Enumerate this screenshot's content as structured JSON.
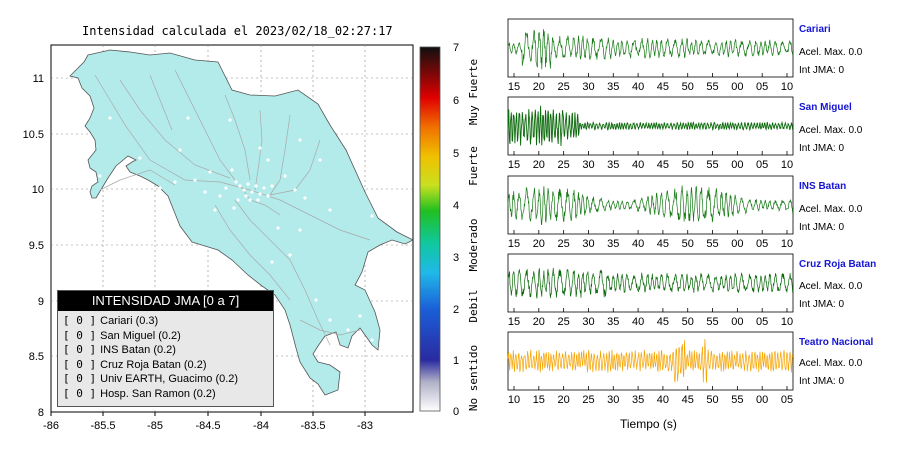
{
  "map": {
    "title": "Intensidad calculada el 2023/02/18_02:27:17",
    "x_ticks": [
      "-86",
      "-85.5",
      "-85",
      "-84.5",
      "-84",
      "-83.5",
      "-83"
    ],
    "y_ticks": [
      "11",
      "10.5",
      "10",
      "9.5",
      "9",
      "8.5",
      "8"
    ],
    "land_color": "#b2ebea",
    "legend": {
      "title": "INTENSIDAD JMA [0 a 7]",
      "items": [
        {
          "level": "[ 0 ]",
          "label": "Cariari (0.3)"
        },
        {
          "level": "[ 0 ]",
          "label": "San Miguel (0.2)"
        },
        {
          "level": "[ 0 ]",
          "label": "INS Batan (0.2)"
        },
        {
          "level": "[ 0 ]",
          "label": "Cruz Roja Batan (0.2)"
        },
        {
          "level": "[ 0 ]",
          "label": "Univ EARTH, Guacimo (0.2)"
        },
        {
          "level": "[ 0 ]",
          "label": "Hosp. San Ramon (0.2)"
        }
      ]
    }
  },
  "colorbar": {
    "ticks": [
      "7",
      "6",
      "5",
      "4",
      "3",
      "2",
      "1",
      "0"
    ],
    "labels": [
      "Muy Fuerte",
      "Fuerte",
      "Moderado",
      "Debil",
      "No sentido"
    ]
  },
  "stations": [
    {
      "name": "Cariari",
      "accel": "Acel. Max. 0.0",
      "jma": "Int JMA: 0",
      "color": "#157a15",
      "ticks": [
        "15",
        "20",
        "25",
        "30",
        "35",
        "40",
        "45",
        "50",
        "55",
        "00",
        "05",
        "10"
      ]
    },
    {
      "name": "San Miguel",
      "accel": "Acel. Max. 0.0",
      "jma": "Int JMA: 0",
      "color": "#0c6a0c",
      "ticks": [
        "15",
        "20",
        "25",
        "30",
        "35",
        "40",
        "45",
        "50",
        "55",
        "00",
        "05",
        "10"
      ]
    },
    {
      "name": "INS Batan",
      "accel": "Acel. Max. 0.0",
      "jma": "Int JMA: 0",
      "color": "#157a15",
      "ticks": [
        "15",
        "20",
        "25",
        "30",
        "35",
        "40",
        "45",
        "50",
        "55",
        "00",
        "05",
        "10"
      ]
    },
    {
      "name": "Cruz Roja Batan",
      "accel": "Acel. Max. 0.0",
      "jma": "Int JMA: 0",
      "color": "#0c6a0c",
      "ticks": [
        "15",
        "20",
        "25",
        "30",
        "35",
        "40",
        "45",
        "50",
        "55",
        "00",
        "05",
        "10"
      ]
    },
    {
      "name": "Teatro Nacional",
      "accel": "Acel. Max. 0.0",
      "jma": "Int JMA: 0",
      "color": "#f5a300",
      "ticks": [
        "10",
        "15",
        "20",
        "25",
        "30",
        "35",
        "40",
        "45",
        "50",
        "55",
        "00",
        "05"
      ]
    }
  ],
  "time_axis_label": "Tiempo (s)"
}
